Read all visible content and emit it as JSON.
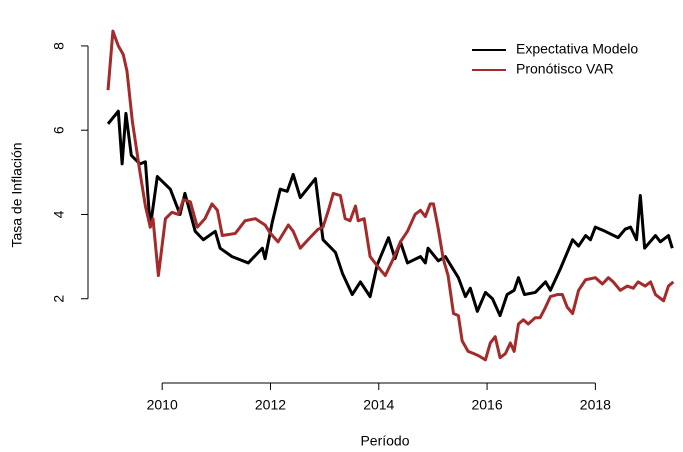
{
  "chart_data": {
    "type": "line",
    "xlabel": "Período",
    "ylabel": "Tasa de Inflación",
    "xlim": [
      2008.63,
      2019.6
    ],
    "ylim": [
      0,
      8.9
    ],
    "xticks": [
      2010,
      2012,
      2014,
      2016,
      2018
    ],
    "yticks": [
      2,
      4,
      6,
      8
    ],
    "legend": "topright",
    "series": [
      {
        "name": "Expectativa Modelo",
        "color": "#000000",
        "x": [
          2009.0,
          2009.19,
          2009.26,
          2009.33,
          2009.43,
          2009.59,
          2009.69,
          2009.78,
          2009.91,
          2010.15,
          2010.33,
          2010.42,
          2010.61,
          2010.76,
          2010.98,
          2011.07,
          2011.29,
          2011.59,
          2011.85,
          2011.9,
          2012.03,
          2012.18,
          2012.31,
          2012.42,
          2012.55,
          2012.83,
          2012.97,
          2013.2,
          2013.33,
          2013.51,
          2013.66,
          2013.84,
          2013.97,
          2014.18,
          2014.3,
          2014.4,
          2014.53,
          2014.77,
          2014.86,
          2014.91,
          2015.1,
          2015.23,
          2015.47,
          2015.6,
          2015.69,
          2015.82,
          2015.97,
          2016.1,
          2016.24,
          2016.37,
          2016.5,
          2016.58,
          2016.69,
          2016.89,
          2017.08,
          2017.17,
          2017.35,
          2017.58,
          2017.69,
          2017.82,
          2017.91,
          2018.0,
          2018.18,
          2018.42,
          2018.55,
          2018.65,
          2018.76,
          2018.83,
          2018.91,
          2019.11,
          2019.2,
          2019.35,
          2019.42
        ],
        "values": [
          6.15,
          6.45,
          5.2,
          6.4,
          5.4,
          5.2,
          5.25,
          3.7,
          4.9,
          4.6,
          4.0,
          4.5,
          3.6,
          3.4,
          3.6,
          3.2,
          3.0,
          2.85,
          3.2,
          2.95,
          3.8,
          4.6,
          4.55,
          4.95,
          4.4,
          4.85,
          3.4,
          3.1,
          2.6,
          2.1,
          2.4,
          2.05,
          2.8,
          3.45,
          2.95,
          3.35,
          2.85,
          3.0,
          2.85,
          3.2,
          2.9,
          3.0,
          2.5,
          2.05,
          2.25,
          1.7,
          2.15,
          2.0,
          1.6,
          2.1,
          2.2,
          2.5,
          2.1,
          2.15,
          2.4,
          2.2,
          2.7,
          3.4,
          3.25,
          3.5,
          3.4,
          3.7,
          3.6,
          3.45,
          3.65,
          3.7,
          3.4,
          4.45,
          3.2,
          3.5,
          3.35,
          3.5,
          3.2
        ]
      },
      {
        "name": "Pronótisco VAR",
        "color": "#a52a2a",
        "x": [
          2009.0,
          2009.09,
          2009.19,
          2009.28,
          2009.35,
          2009.45,
          2009.59,
          2009.69,
          2009.78,
          2009.83,
          2009.93,
          2010.06,
          2010.18,
          2010.3,
          2010.39,
          2010.52,
          2010.65,
          2010.79,
          2010.92,
          2011.02,
          2011.11,
          2011.35,
          2011.53,
          2011.72,
          2011.9,
          2012.0,
          2012.14,
          2012.33,
          2012.42,
          2012.55,
          2012.73,
          2012.88,
          2012.97,
          2013.07,
          2013.16,
          2013.29,
          2013.38,
          2013.47,
          2013.57,
          2013.62,
          2013.73,
          2013.84,
          2013.99,
          2014.12,
          2014.25,
          2014.4,
          2014.53,
          2014.67,
          2014.77,
          2014.86,
          2014.95,
          2015.01,
          2015.1,
          2015.19,
          2015.28,
          2015.38,
          2015.47,
          2015.54,
          2015.65,
          2015.75,
          2015.84,
          2015.97,
          2016.06,
          2016.15,
          2016.24,
          2016.34,
          2016.43,
          2016.5,
          2016.58,
          2016.67,
          2016.76,
          2016.89,
          2016.98,
          2017.08,
          2017.17,
          2017.3,
          2017.39,
          2017.48,
          2017.58,
          2017.69,
          2017.82,
          2018.0,
          2018.13,
          2018.24,
          2018.33,
          2018.46,
          2018.59,
          2018.7,
          2018.79,
          2018.92,
          2019.02,
          2019.11,
          2019.26,
          2019.35,
          2019.44
        ],
        "values": [
          6.95,
          8.35,
          8.0,
          7.8,
          7.4,
          6.2,
          5.0,
          4.2,
          3.7,
          3.9,
          2.55,
          3.9,
          4.05,
          4.0,
          4.35,
          4.3,
          3.7,
          3.9,
          4.25,
          4.1,
          3.5,
          3.55,
          3.85,
          3.9,
          3.75,
          3.55,
          3.35,
          3.75,
          3.6,
          3.2,
          3.45,
          3.65,
          3.7,
          4.1,
          4.5,
          4.45,
          3.9,
          3.85,
          4.2,
          3.85,
          3.9,
          3.0,
          2.75,
          2.55,
          2.9,
          3.35,
          3.6,
          4.0,
          4.1,
          3.95,
          4.25,
          4.25,
          3.65,
          2.95,
          2.55,
          1.65,
          1.6,
          1.0,
          0.75,
          0.7,
          0.65,
          0.55,
          0.95,
          1.1,
          0.6,
          0.7,
          0.95,
          0.75,
          1.4,
          1.5,
          1.4,
          1.55,
          1.55,
          1.8,
          2.05,
          2.1,
          2.1,
          1.8,
          1.65,
          2.2,
          2.45,
          2.5,
          2.35,
          2.5,
          2.4,
          2.2,
          2.3,
          2.25,
          2.4,
          2.3,
          2.4,
          2.1,
          1.95,
          2.3,
          2.4
        ]
      }
    ]
  }
}
